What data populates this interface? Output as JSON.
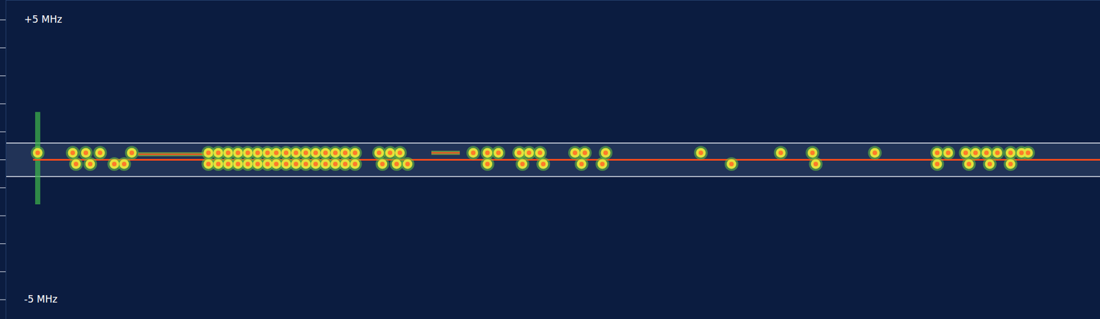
{
  "chart_data": {
    "type": "spectrogram",
    "xlim": [
      0,
      100
    ],
    "ylim": [
      -5.7,
      5.7
    ],
    "yticks": [
      {
        "value": 5,
        "label": "+5 MHz"
      },
      {
        "value": 4,
        "label": null
      },
      {
        "value": 3,
        "label": null
      },
      {
        "value": 2,
        "label": null
      },
      {
        "value": 1,
        "label": null
      },
      {
        "value": 0,
        "label": null
      },
      {
        "value": -1,
        "label": null
      },
      {
        "value": -2,
        "label": null
      },
      {
        "value": -3,
        "label": null
      },
      {
        "value": -4,
        "label": null
      },
      {
        "value": -5,
        "label": "-5 MHz"
      }
    ],
    "tick_labels": "y",
    "passband": [
      -0.6,
      0.6
    ],
    "carrier": {
      "frequency": 0,
      "x": [
        2.5,
        100
      ],
      "color": "#ff4a1c"
    },
    "transient": {
      "x": 2.9,
      "range": [
        -1.6,
        1.7
      ]
    },
    "tones": [
      {
        "x": [
          12.1,
          18.2
        ],
        "frequency": 0.2
      },
      {
        "x": [
          38.9,
          41.5
        ],
        "frequency": 0.25
      }
    ],
    "pulses": {
      "color": "#e3e23c",
      "x": [
        2.9,
        6.1,
        7.3,
        8.6,
        11.5,
        18.5,
        19.4,
        20.3,
        21.2,
        22.1,
        23.0,
        23.9,
        24.7,
        25.6,
        26.5,
        27.4,
        28.3,
        29.2,
        30.1,
        31.0,
        31.9,
        34.1,
        35.1,
        36.0,
        42.7,
        44.0,
        45.0,
        46.9,
        47.8,
        48.8,
        52.0,
        52.9,
        54.8,
        63.5,
        70.8,
        73.7,
        79.4,
        85.1,
        86.1,
        87.7,
        88.6,
        89.6,
        90.6,
        91.8,
        92.8,
        93.4,
        6.4,
        7.7,
        9.9,
        10.8,
        18.5,
        19.4,
        20.3,
        21.2,
        22.1,
        23.0,
        23.9,
        24.7,
        25.6,
        26.5,
        27.4,
        28.3,
        29.2,
        30.1,
        31.0,
        31.9,
        34.4,
        35.7,
        36.7,
        44.0,
        47.2,
        49.1,
        52.6,
        54.5,
        66.3,
        74.0,
        85.1,
        88.0,
        89.9,
        91.8
      ],
      "frequency": [
        0.25,
        0.25,
        0.25,
        0.25,
        0.25,
        0.25,
        0.25,
        0.25,
        0.25,
        0.25,
        0.25,
        0.25,
        0.25,
        0.25,
        0.25,
        0.25,
        0.25,
        0.25,
        0.25,
        0.25,
        0.25,
        0.25,
        0.25,
        0.25,
        0.25,
        0.25,
        0.25,
        0.25,
        0.25,
        0.25,
        0.25,
        0.25,
        0.25,
        0.25,
        0.25,
        0.25,
        0.25,
        0.25,
        0.25,
        0.25,
        0.25,
        0.25,
        0.25,
        0.25,
        0.25,
        0.25,
        -0.15,
        -0.15,
        -0.15,
        -0.15,
        -0.15,
        -0.15,
        -0.15,
        -0.15,
        -0.15,
        -0.15,
        -0.15,
        -0.15,
        -0.15,
        -0.15,
        -0.15,
        -0.15,
        -0.15,
        -0.15,
        -0.15,
        -0.15,
        -0.15,
        -0.15,
        -0.15,
        -0.15,
        -0.15,
        -0.15,
        -0.15,
        -0.15,
        -0.15,
        -0.15,
        -0.15,
        -0.15,
        -0.15,
        -0.15
      ]
    }
  }
}
